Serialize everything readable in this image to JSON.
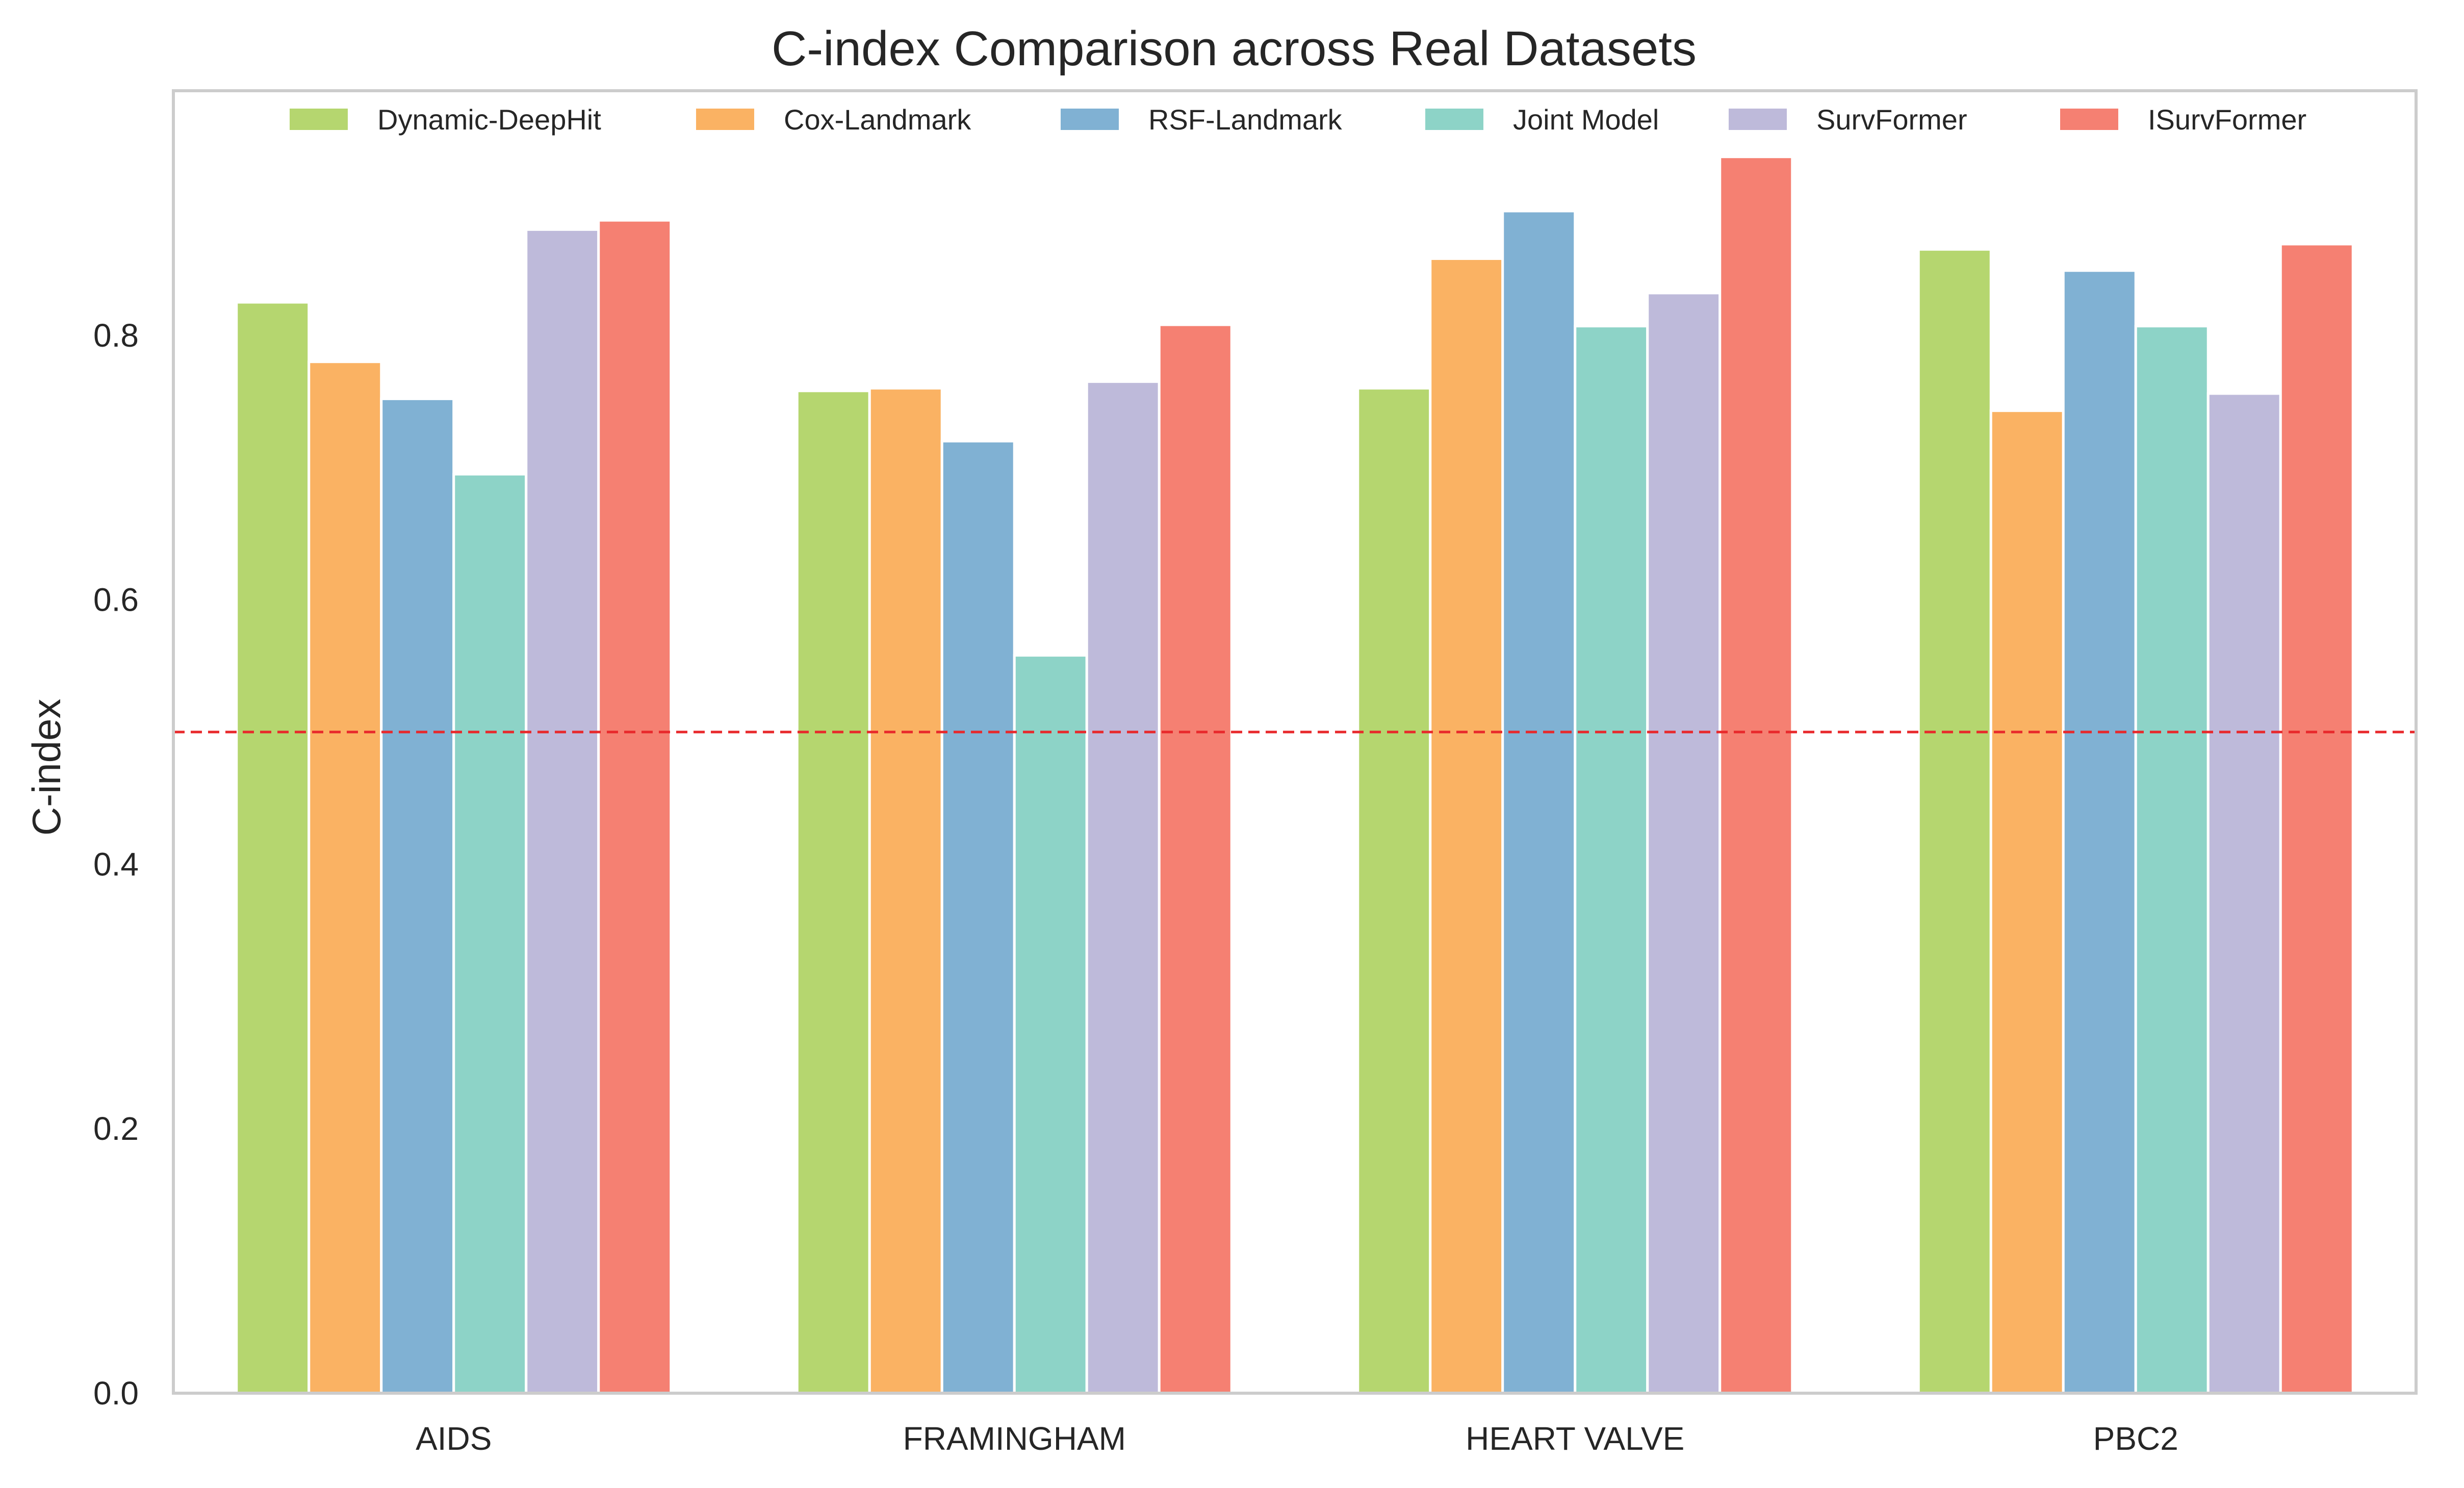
{
  "chart_data": {
    "type": "bar",
    "title": "C-index Comparison across Real Datasets",
    "xlabel": "",
    "ylabel": "C-index",
    "ylim": [
      0,
      0.985
    ],
    "yticks": [
      "0.0",
      "0.2",
      "0.4",
      "0.6",
      "0.8"
    ],
    "grid": false,
    "legend_position": "top",
    "categories": [
      "AIDS",
      "FRAMINGHAM",
      "HEART VALVE",
      "PBC2"
    ],
    "series": [
      {
        "name": "Dynamic-DeepHit",
        "color": "#b5d66f",
        "values": [
          0.825,
          0.758,
          0.76,
          0.865
        ]
      },
      {
        "name": "Cox-Landmark",
        "color": "#fab263",
        "values": [
          0.78,
          0.76,
          0.858,
          0.743
        ]
      },
      {
        "name": "RSF-Landmark",
        "color": "#80b1d3",
        "values": [
          0.752,
          0.72,
          0.894,
          0.849
        ]
      },
      {
        "name": "Joint Model",
        "color": "#8dd3c7",
        "values": [
          0.695,
          0.558,
          0.807,
          0.807
        ]
      },
      {
        "name": "SurvFormer",
        "color": "#bebada",
        "values": [
          0.88,
          0.765,
          0.832,
          0.756
        ]
      },
      {
        "name": "ISurvFormer",
        "color": "#f58072",
        "values": [
          0.887,
          0.808,
          0.935,
          0.869
        ]
      }
    ],
    "reference_line": {
      "value": 0.5,
      "color": "#e8282b",
      "style": "dashed"
    }
  }
}
